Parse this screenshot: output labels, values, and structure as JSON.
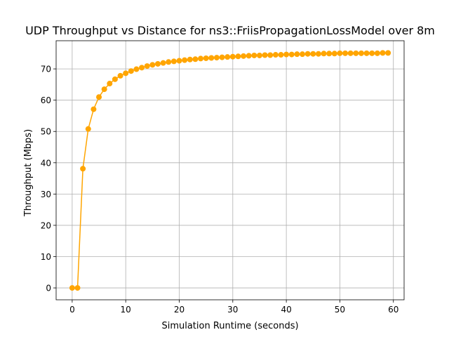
{
  "chart_data": {
    "type": "line",
    "title": "UDP Throughput vs Distance for ns3::FriisPropagationLossModel over 8m",
    "xlabel": "Simulation Runtime (seconds)",
    "ylabel": "Throughput (Mbps)",
    "xlim": [
      -3,
      62
    ],
    "ylim": [
      -3.8,
      79
    ],
    "xticks": [
      0,
      10,
      20,
      30,
      40,
      50,
      60
    ],
    "yticks": [
      0,
      10,
      20,
      30,
      40,
      50,
      60,
      70
    ],
    "grid": true,
    "series": [
      {
        "color": "#ffa500",
        "marker": "circle",
        "x": [
          0,
          1,
          2,
          3,
          4,
          5,
          6,
          7,
          8,
          9,
          10,
          11,
          12,
          13,
          14,
          15,
          16,
          17,
          18,
          19,
          20,
          21,
          22,
          23,
          24,
          25,
          26,
          27,
          28,
          29,
          30,
          31,
          32,
          33,
          34,
          35,
          36,
          37,
          38,
          39,
          40,
          41,
          42,
          43,
          44,
          45,
          46,
          47,
          48,
          49,
          50,
          51,
          52,
          53,
          54,
          55,
          56,
          57,
          58,
          59
        ],
        "values": [
          0,
          0,
          38.1,
          50.8,
          57.1,
          61.0,
          63.5,
          65.3,
          66.7,
          67.8,
          68.6,
          69.3,
          69.9,
          70.4,
          70.9,
          71.3,
          71.6,
          71.9,
          72.2,
          72.4,
          72.6,
          72.8,
          73.0,
          73.1,
          73.3,
          73.4,
          73.5,
          73.6,
          73.7,
          73.8,
          73.9,
          74.0,
          74.1,
          74.2,
          74.3,
          74.3,
          74.4,
          74.4,
          74.5,
          74.5,
          74.6,
          74.6,
          74.7,
          74.7,
          74.8,
          74.8,
          74.8,
          74.9,
          74.9,
          74.9,
          75.0,
          75.0,
          75.0,
          75.0,
          75.0,
          75.0,
          75.0,
          75.0,
          75.1,
          75.1
        ]
      }
    ]
  }
}
